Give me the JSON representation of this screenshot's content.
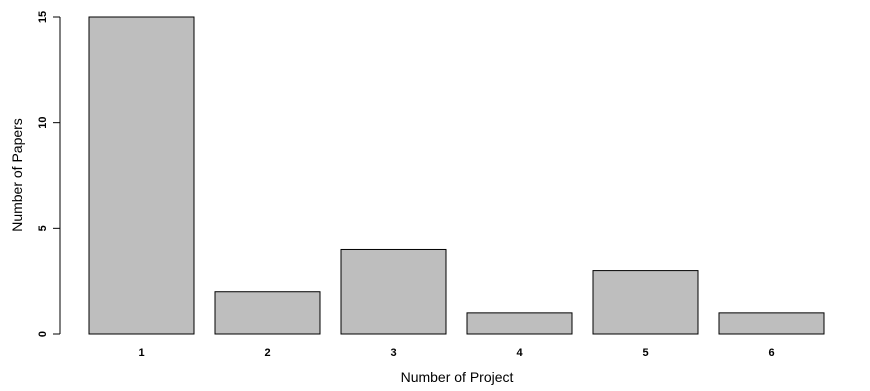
{
  "chart_data": {
    "type": "bar",
    "title": "",
    "xlabel": "Number of Project",
    "ylabel": "Number of Papers",
    "categories": [
      "1",
      "2",
      "3",
      "4",
      "5",
      "6"
    ],
    "values": [
      15,
      2,
      4,
      1,
      3,
      1
    ],
    "ylim": [
      0,
      15
    ],
    "yticks": [
      "0",
      "5",
      "10",
      "15"
    ],
    "grid": false,
    "legend": "none",
    "bar_color": "#bebebe",
    "bar_edge_color": "#000000"
  }
}
